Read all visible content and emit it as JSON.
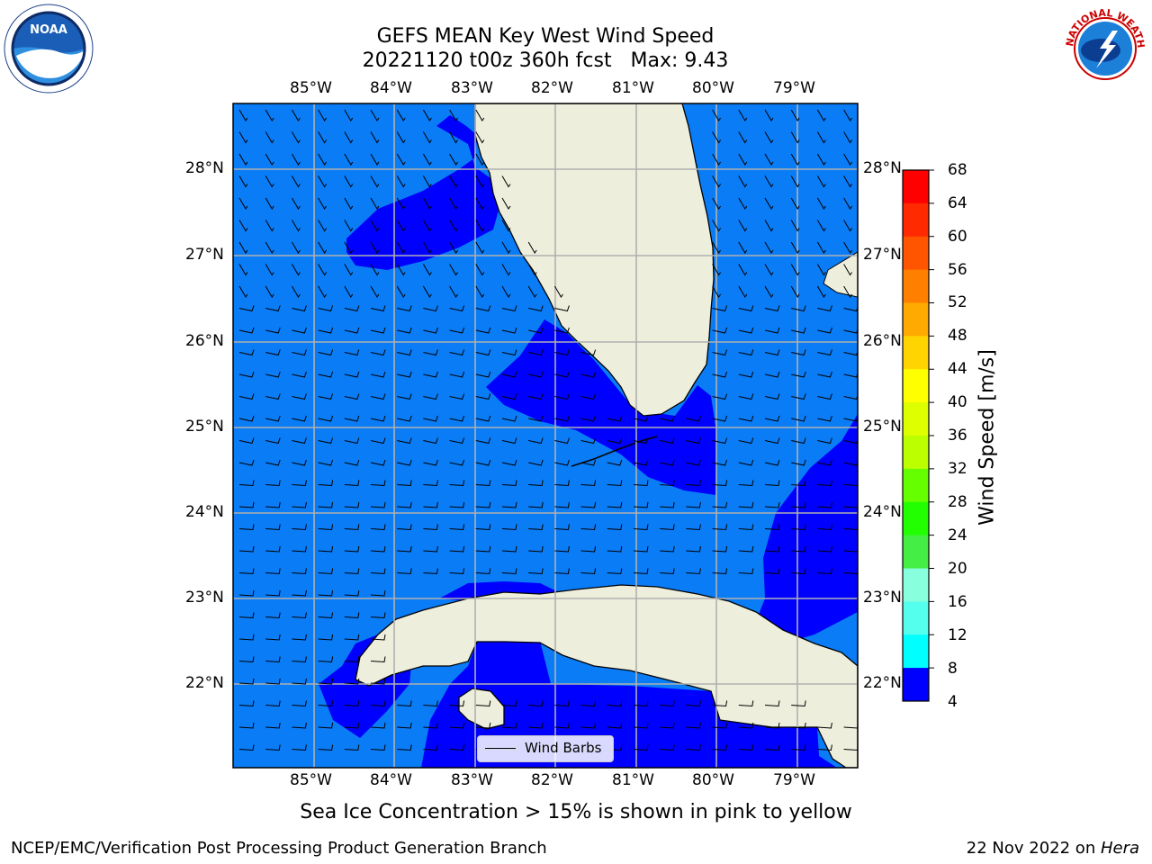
{
  "header": {
    "title_line1": "GEFS MEAN Key West Wind Speed",
    "title_line2": "20221120 t00z 360h fcst   Max: 9.43"
  },
  "logos": {
    "left": "NOAA",
    "right": "NATIONAL WEATHER SERVICE"
  },
  "map": {
    "lon_labels": [
      "85°W",
      "84°W",
      "83°W",
      "82°W",
      "81°W",
      "80°W",
      "79°W"
    ],
    "lat_labels": [
      "28°N",
      "27°N",
      "26°N",
      "25°N",
      "24°N",
      "23°N",
      "22°N"
    ],
    "extent": {
      "lon_min": -86.0,
      "lon_max": -78.25,
      "lat_min": 21.0,
      "lat_max": 28.75
    },
    "field": "wind speed",
    "regions": [
      {
        "level_range": "4-8",
        "color": "#0000ff",
        "where": "Gulf west of Florida, Florida Bay, Keys, east of Keys, south of Cuba coast"
      },
      {
        "level_range": "8-12",
        "color": "#0a7cf5",
        "where": "most of Gulf of Mexico and Florida Straits"
      }
    ],
    "land_color": "#eeeedd",
    "legend": {
      "label": "Wind Barbs"
    }
  },
  "colorbar": {
    "title": "Wind Speed [m/s]",
    "ticks": [
      "68",
      "64",
      "60",
      "56",
      "52",
      "48",
      "44",
      "40",
      "36",
      "32",
      "28",
      "24",
      "20",
      "16",
      "12",
      "8",
      "4"
    ],
    "colors": [
      "#ff0000",
      "#ff2a00",
      "#ff5500",
      "#ff8000",
      "#ffaa00",
      "#ffd400",
      "#ffff00",
      "#ddff00",
      "#bbff00",
      "#66ff00",
      "#22ff00",
      "#44ee44",
      "#88ffdd",
      "#55ffee",
      "#00ffff",
      "#0a7cf5",
      "#0000ff"
    ]
  },
  "caption": "Sea Ice Concentration > 15% is shown in pink to yellow",
  "footer": {
    "left": "NCEP/EMC/Verification Post Processing Product Generation Branch",
    "date": "22 Nov 2022 on ",
    "machine": "Hera"
  }
}
